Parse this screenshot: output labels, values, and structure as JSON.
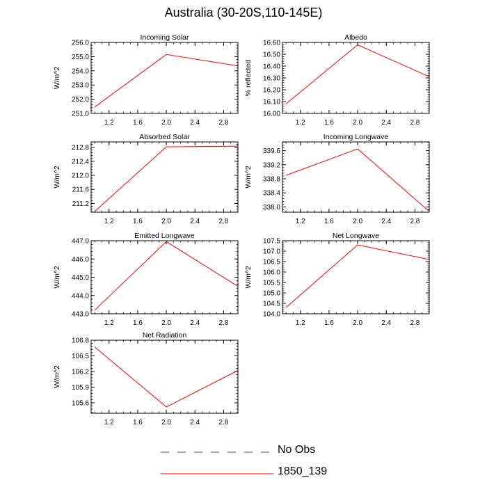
{
  "title": "Australia (30-20S,110-145E)",
  "legend": {
    "items": [
      {
        "label": "No Obs",
        "color": "#3a3ad6",
        "style": "dashed"
      },
      {
        "label": "1850_139",
        "color": "#ff0000",
        "style": "solid"
      }
    ]
  },
  "chart_data": [
    {
      "type": "line",
      "title": "Incoming Solar",
      "ylabel": "W/m^2",
      "xlim": [
        0.95,
        3.0
      ],
      "ylim": [
        251.0,
        256.0
      ],
      "xticks": [
        "1.2",
        "1.6",
        "2.0",
        "2.4",
        "2.8"
      ],
      "yticks": [
        "251.0",
        "252.0",
        "253.0",
        "254.0",
        "255.0",
        "256.0"
      ],
      "series": [
        {
          "x": [
            1,
            2,
            3
          ],
          "y": [
            251.45,
            255.15,
            254.35
          ]
        }
      ]
    },
    {
      "type": "line",
      "title": "Albedo",
      "ylabel": "% reflected",
      "xlim": [
        0.95,
        3.0
      ],
      "ylim": [
        16.0,
        16.6
      ],
      "xticks": [
        "1.2",
        "1.6",
        "2.0",
        "2.4",
        "2.8"
      ],
      "yticks": [
        "16.00",
        "16.10",
        "16.20",
        "16.30",
        "16.40",
        "16.50",
        "16.60"
      ],
      "series": [
        {
          "x": [
            1,
            2,
            3
          ],
          "y": [
            16.08,
            16.58,
            16.31
          ]
        }
      ]
    },
    {
      "type": "line",
      "title": "Absorbed Solar",
      "ylabel": "W/m^2",
      "xlim": [
        0.95,
        3.0
      ],
      "ylim": [
        210.95,
        212.95
      ],
      "xticks": [
        "1.2",
        "1.6",
        "2.0",
        "2.4",
        "2.8"
      ],
      "yticks": [
        "211.2",
        "211.6",
        "212.0",
        "212.4",
        "212.8"
      ],
      "series": [
        {
          "x": [
            1,
            2,
            3
          ],
          "y": [
            210.97,
            212.81,
            212.83
          ]
        }
      ]
    },
    {
      "type": "line",
      "title": "Incoming Longwave",
      "ylabel": "W/m^2",
      "xlim": [
        0.95,
        3.0
      ],
      "ylim": [
        337.85,
        339.85
      ],
      "xticks": [
        "1.2",
        "1.6",
        "2.0",
        "2.4",
        "2.8"
      ],
      "yticks": [
        "338.0",
        "338.4",
        "338.8",
        "339.2",
        "339.6"
      ],
      "series": [
        {
          "x": [
            1,
            2,
            3
          ],
          "y": [
            338.9,
            339.65,
            337.87
          ]
        }
      ]
    },
    {
      "type": "line",
      "title": "Emitted Longwave",
      "ylabel": "W/m^2",
      "xlim": [
        0.95,
        3.0
      ],
      "ylim": [
        443.0,
        447.0
      ],
      "xticks": [
        "1.2",
        "1.6",
        "2.0",
        "2.4",
        "2.8"
      ],
      "yticks": [
        "443.0",
        "444.0",
        "445.0",
        "446.0",
        "447.0"
      ],
      "series": [
        {
          "x": [
            1,
            2,
            3
          ],
          "y": [
            443.2,
            446.95,
            444.5
          ]
        }
      ]
    },
    {
      "type": "line",
      "title": "Net Longwave",
      "ylabel": "W/m^2",
      "xlim": [
        0.95,
        3.0
      ],
      "ylim": [
        104.0,
        107.5
      ],
      "xticks": [
        "1.2",
        "1.6",
        "2.0",
        "2.4",
        "2.8"
      ],
      "yticks": [
        "104.0",
        "104.5",
        "105.0",
        "105.5",
        "106.0",
        "106.5",
        "107.0",
        "107.5"
      ],
      "series": [
        {
          "x": [
            1,
            2,
            3
          ],
          "y": [
            104.3,
            107.3,
            106.6
          ]
        }
      ]
    },
    {
      "type": "line",
      "title": "Net Radiation",
      "ylabel": "W/m^2",
      "xlim": [
        0.95,
        3.0
      ],
      "ylim": [
        105.4,
        106.8
      ],
      "xticks": [
        "1.2",
        "1.6",
        "2.0",
        "2.4",
        "2.8"
      ],
      "yticks": [
        "105.6",
        "105.9",
        "106.2",
        "106.5",
        "106.8"
      ],
      "series": [
        {
          "x": [
            1,
            2,
            3
          ],
          "y": [
            106.67,
            105.52,
            106.22
          ]
        }
      ]
    }
  ]
}
